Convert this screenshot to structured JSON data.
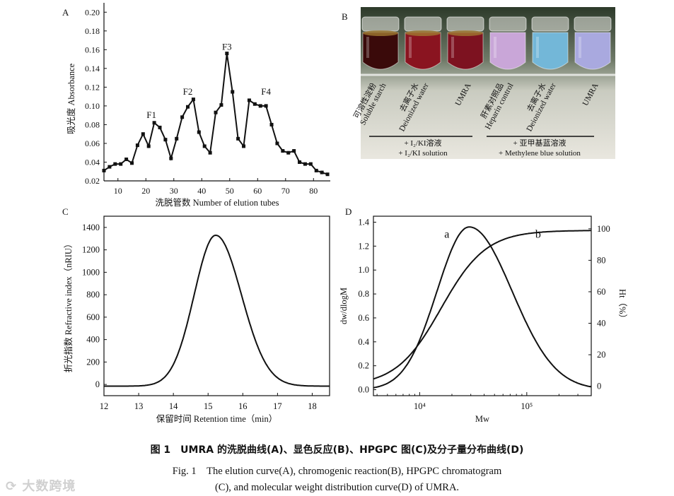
{
  "figure": {
    "caption_cn": "图 1　UMRA 的洗脱曲线(A)、显色反应(B)、HPGPC 图(C)及分子量分布曲线(D)",
    "caption_en_line1": "Fig. 1　The elution curve(A), chromogenic reaction(B), HPGPC chromatogram",
    "caption_en_line2": "(C), and molecular weight distribution curve(D) of UMRA.",
    "watermark": "大数跨境"
  },
  "panel_labels": {
    "a": "A",
    "b": "B",
    "c": "C",
    "d": "D"
  },
  "photo_b": {
    "tubes": [
      {
        "label_cn": "可溶性淀粉",
        "label_en": "Soluble starch",
        "color": "#3a0a0a"
      },
      {
        "label_cn": "去离子水",
        "label_en": "Deionized water",
        "color": "#8a1420"
      },
      {
        "label_cn": "",
        "label_en": "UMRA",
        "color": "#7d1220"
      },
      {
        "label_cn": "肝素对照品",
        "label_en": "Heparin control",
        "color": "#c9a6d8"
      },
      {
        "label_cn": "去离子水",
        "label_en": "Deionized water",
        "color": "#73b7d8"
      },
      {
        "label_cn": "",
        "label_en": "UMRA",
        "color": "#a9a9df"
      }
    ],
    "group1_cn": "+ I₂/KI溶液",
    "group1_en": "+ I₂/KI solution",
    "group2_cn": "+ 亚甲基蓝溶液",
    "group2_en": "+ Methylene blue solution"
  },
  "chart_data": [
    {
      "id": "A",
      "type": "line",
      "title": "",
      "xlabel": "洗脱管数 Number of elution tubes",
      "ylabel": "吸光度 Absorbance",
      "xlim": [
        5,
        86
      ],
      "ylim": [
        0.02,
        0.21
      ],
      "xticks": [
        10,
        20,
        30,
        40,
        50,
        60,
        70,
        80
      ],
      "yticks": [
        0.02,
        0.04,
        0.06,
        0.08,
        0.1,
        0.12,
        0.14,
        0.16,
        0.18,
        0.2
      ],
      "ytick_labels": [
        "0.02",
        "0.04",
        "0.06",
        "0.08",
        "0.10",
        "0.12",
        "0.14",
        "0.16",
        "0.18",
        "0.20"
      ],
      "markers": true,
      "x": [
        5,
        7,
        9,
        11,
        13,
        15,
        17,
        19,
        21,
        23,
        25,
        27,
        29,
        31,
        33,
        35,
        37,
        39,
        41,
        43,
        45,
        47,
        49,
        51,
        53,
        55,
        57,
        59,
        61,
        63,
        65,
        67,
        69,
        71,
        73,
        75,
        77,
        79,
        81,
        83,
        85
      ],
      "y": [
        0.031,
        0.035,
        0.038,
        0.038,
        0.043,
        0.039,
        0.058,
        0.07,
        0.057,
        0.082,
        0.077,
        0.064,
        0.044,
        0.065,
        0.088,
        0.099,
        0.107,
        0.072,
        0.057,
        0.05,
        0.093,
        0.101,
        0.156,
        0.115,
        0.065,
        0.057,
        0.106,
        0.102,
        0.1,
        0.1,
        0.08,
        0.06,
        0.052,
        0.05,
        0.052,
        0.04,
        0.038,
        0.038,
        0.031,
        0.029,
        0.027
      ],
      "annotations": [
        {
          "text": "F1",
          "x": 22,
          "y": 0.087
        },
        {
          "text": "F2",
          "x": 35,
          "y": 0.112
        },
        {
          "text": "F3",
          "x": 49,
          "y": 0.16
        },
        {
          "text": "F4",
          "x": 63,
          "y": 0.112
        }
      ]
    },
    {
      "id": "C",
      "type": "line",
      "title": "",
      "xlabel": "保留时间 Retention time（min）",
      "ylabel": "折光指数 Refractive index（nRIU）",
      "xlim": [
        12,
        18.5
      ],
      "ylim": [
        -100,
        1500
      ],
      "xticks": [
        12,
        13,
        14,
        15,
        16,
        17,
        18
      ],
      "yticks": [
        0,
        200,
        400,
        600,
        800,
        1000,
        1200,
        1400
      ],
      "peak_center": 15.22,
      "peak_height": 1330,
      "baseline": -15
    },
    {
      "id": "D",
      "type": "line",
      "title": "",
      "xlabel": "Mw",
      "ylabel_left": "dw/dlogM",
      "ylabel_right": "Ht（%）",
      "xscale": "log",
      "xlim": [
        3700,
        400000
      ],
      "ylim_left": [
        -0.05,
        1.45
      ],
      "ylim_right": [
        -6,
        108
      ],
      "xticks": [
        10000,
        100000
      ],
      "xtick_labels": [
        "10⁴",
        "10⁵"
      ],
      "yticks_left": [
        0.0,
        0.2,
        0.4,
        0.6,
        0.8,
        1.0,
        1.2,
        1.4
      ],
      "yticks_right": [
        0,
        20,
        40,
        60,
        80,
        100
      ],
      "series": [
        {
          "name": "a",
          "axis": "left",
          "peak_mw": 29000,
          "peak_value": 1.36
        },
        {
          "name": "b",
          "axis": "right",
          "max_value": 99
        }
      ]
    }
  ]
}
